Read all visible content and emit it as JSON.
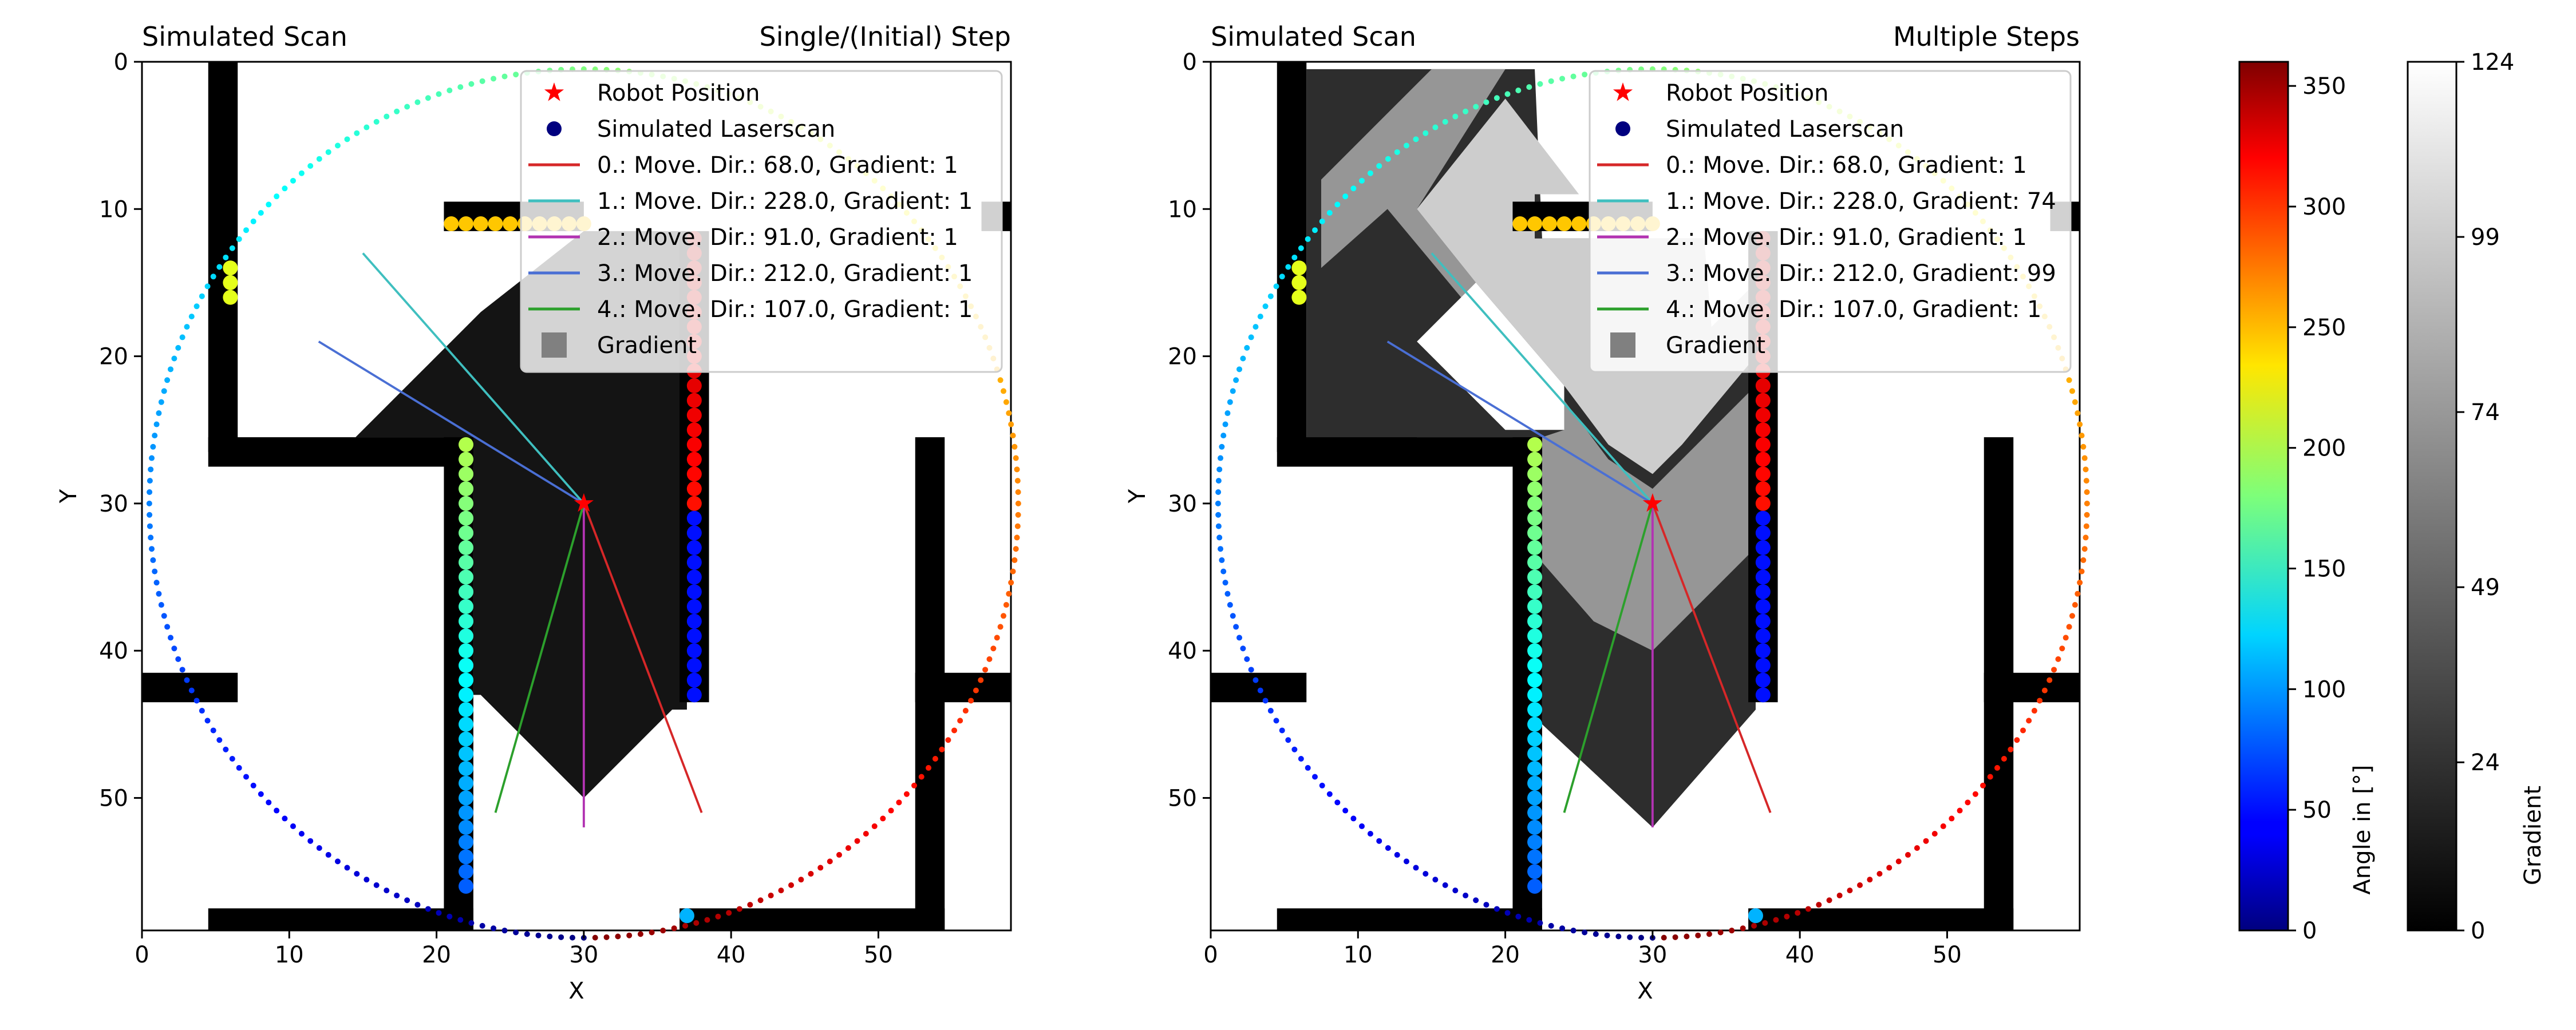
{
  "chart_data": [
    {
      "type": "scatter",
      "title_left": "Simulated Scan",
      "title_right": "Single/(Initial) Step",
      "xlabel": "X",
      "ylabel": "Y",
      "xlim": [
        0,
        59
      ],
      "ylim": [
        59,
        0
      ],
      "xticks": [
        0,
        10,
        20,
        30,
        40,
        50
      ],
      "yticks": [
        0,
        10,
        20,
        30,
        40,
        50
      ],
      "robot_position": [
        30,
        30
      ],
      "scan_circle_center": [
        30,
        30
      ],
      "scan_circle_radius": 29.5,
      "move_lines": [
        {
          "label": "0.: Move. Dir.: 68.0, Gradient: 1",
          "color": "#d62728",
          "end": [
            38,
            51
          ]
        },
        {
          "label": "1.: Move. Dir.: 228.0, Gradient: 1",
          "color": "#3fbfbf",
          "end": [
            15,
            13
          ]
        },
        {
          "label": "2.: Move. Dir.: 91.0, Gradient: 1",
          "color": "#b233b2",
          "end": [
            30,
            52
          ]
        },
        {
          "label": "3.: Move. Dir.: 212.0, Gradient: 1",
          "color": "#4a6fd4",
          "end": [
            12,
            19
          ]
        },
        {
          "label": "4.: Move. Dir.: 107.0, Gradient: 1",
          "color": "#2ca02c",
          "end": [
            24,
            51
          ]
        }
      ],
      "legend": {
        "placement": "top-right",
        "robot_label": "Robot Position",
        "scan_label": "Simulated Laserscan",
        "gradient_label": "Gradient"
      },
      "gradient_levels": {
        "outer": 20,
        "mid": 20,
        "inner": 20,
        "bands_visible": false
      }
    },
    {
      "type": "scatter",
      "title_left": "Simulated Scan",
      "title_right": "Multiple Steps",
      "xlabel": "X",
      "ylabel": "Y",
      "xlim": [
        0,
        59
      ],
      "ylim": [
        59,
        0
      ],
      "xticks": [
        0,
        10,
        20,
        30,
        40,
        50
      ],
      "yticks": [
        0,
        10,
        20,
        30,
        40,
        50
      ],
      "robot_position": [
        30,
        30
      ],
      "scan_circle_center": [
        30,
        30
      ],
      "scan_circle_radius": 29.5,
      "move_lines": [
        {
          "label": "0.: Move. Dir.: 68.0, Gradient: 1",
          "color": "#d62728",
          "end": [
            38,
            51
          ]
        },
        {
          "label": "1.: Move. Dir.: 228.0, Gradient: 74",
          "color": "#3fbfbf",
          "end": [
            15,
            13
          ]
        },
        {
          "label": "2.: Move. Dir.: 91.0, Gradient: 1",
          "color": "#b233b2",
          "end": [
            30,
            52
          ]
        },
        {
          "label": "3.: Move. Dir.: 212.0, Gradient: 99",
          "color": "#4a6fd4",
          "end": [
            12,
            19
          ]
        },
        {
          "label": "4.: Move. Dir.: 107.0, Gradient: 1",
          "color": "#2ca02c",
          "end": [
            24,
            51
          ]
        }
      ],
      "legend": {
        "placement": "top-right",
        "robot_label": "Robot Position",
        "scan_label": "Simulated Laserscan",
        "gradient_label": "Gradient"
      },
      "gradient_levels": {
        "outer": 45,
        "mid": 150,
        "inner": 205,
        "bands_visible": true
      }
    },
    {
      "type": "heatmap",
      "role": "colorbar",
      "colormap": "jet",
      "label": "Angle in [°]",
      "range": [
        0,
        360
      ],
      "ticks": [
        0,
        50,
        100,
        150,
        200,
        250,
        300,
        350
      ]
    },
    {
      "type": "heatmap",
      "role": "colorbar",
      "colormap": "gray",
      "label": "Gradient",
      "range": [
        0,
        124
      ],
      "ticks": [
        0,
        24,
        49,
        74,
        99,
        124
      ]
    }
  ]
}
